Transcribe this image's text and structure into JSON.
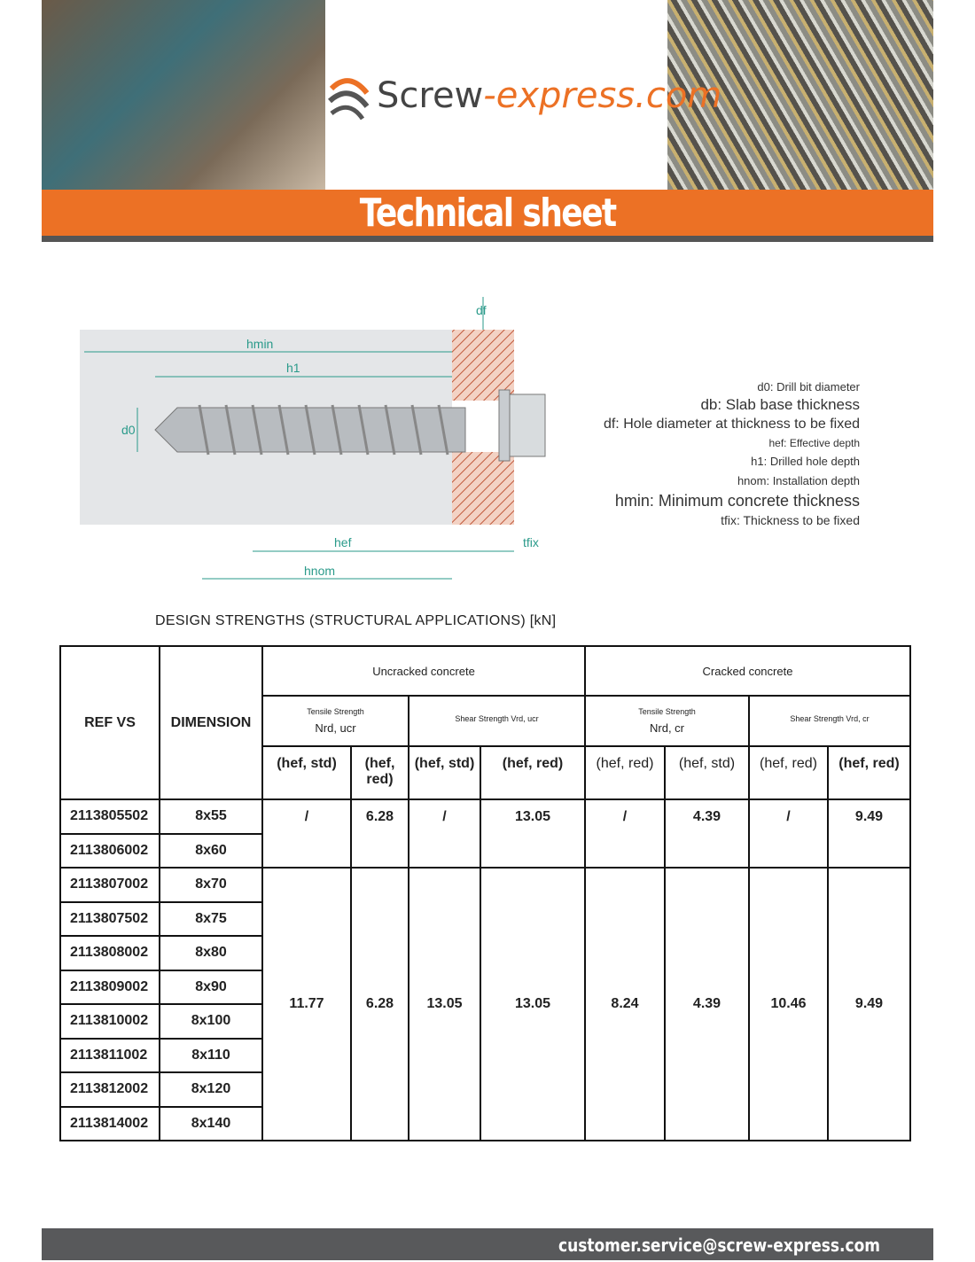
{
  "header": {
    "logo_main": "Screw",
    "logo_ext": "-express.com",
    "title": "Technical sheet"
  },
  "diagram": {
    "labels": {
      "hmin": "hmin",
      "h1": "h1",
      "d0": "d0",
      "df": "df",
      "hef": "hef",
      "hnom": "hnom",
      "tfix": "tfix"
    }
  },
  "legend": [
    "d0: Drill bit diameter",
    "db: Slab base thickness",
    "df: Hole diameter at thickness to be fixed",
    "hef: Effective depth",
    "h1: Drilled hole depth",
    "hnom: Installation depth",
    "hmin: Minimum concrete thickness",
    "tfix: Thickness to be fixed"
  ],
  "section_title": "DESIGN STRENGTHS (STRUCTURAL APPLICATIONS) [kN]",
  "table": {
    "ref_header": "REF VS",
    "dim_header": "DIMENSION",
    "groups": [
      "Uncracked concrete",
      "Cracked concrete"
    ],
    "sub": [
      {
        "t": "Tensile Strength",
        "s": "Nrd, ucr"
      },
      {
        "t": "Shear Strength Vrd, ucr",
        "s": ""
      },
      {
        "t": "Tensile Strength",
        "s": "Nrd, cr"
      },
      {
        "t": "Shear Strength Vrd, cr",
        "s": ""
      }
    ],
    "cols": [
      "(hef, std)",
      "(hef, red)",
      "(hef, std)",
      "(hef, red)",
      "(hef, red)",
      "(hef, std)",
      "(hef, red)",
      "(hef, red)"
    ],
    "rows": [
      [
        "2113805502",
        "8x55"
      ],
      [
        "2113806002",
        "8x60"
      ],
      [
        "2113807002",
        "8x70"
      ],
      [
        "2113807502",
        "8x75"
      ],
      [
        "2113808002",
        "8x80"
      ],
      [
        "2113809002",
        "8x90"
      ],
      [
        "2113810002",
        "8x100"
      ],
      [
        "2113811002",
        "8x110"
      ],
      [
        "2113812002",
        "8x120"
      ],
      [
        "2113814002",
        "8x140"
      ]
    ],
    "values_group1": [
      "/",
      "6.28",
      "/",
      "13.05",
      "/",
      "4.39",
      "/",
      "9.49"
    ],
    "values_group2": [
      "11.77",
      "6.28",
      "13.05",
      "13.05",
      "8.24",
      "4.39",
      "10.46",
      "9.49"
    ]
  },
  "footer": {
    "email": "customer.service@screw-express.com"
  },
  "colors": {
    "brand": "#ec7125",
    "dark": "#58595b"
  }
}
